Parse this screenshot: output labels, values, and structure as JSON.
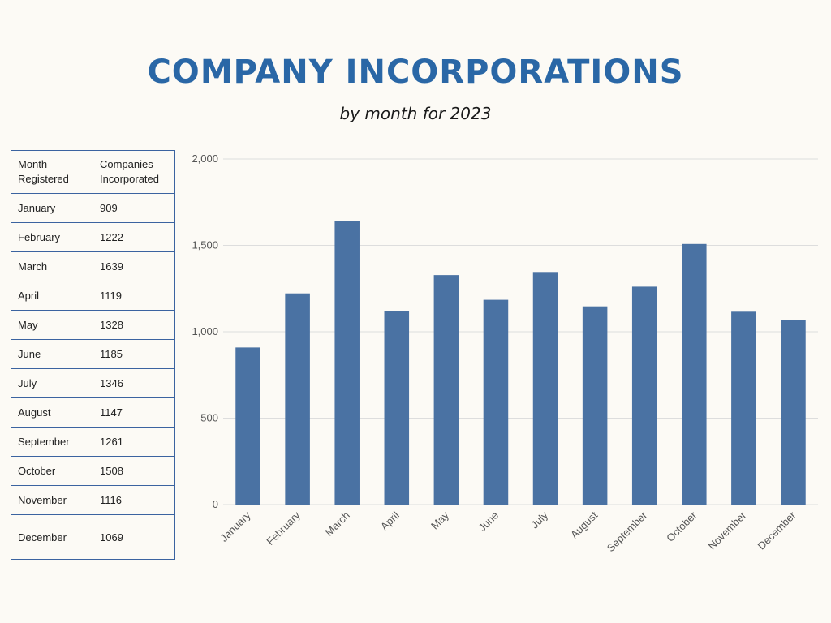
{
  "title": "COMPANY INCORPORATIONS",
  "subtitle": "by month for 2023",
  "table": {
    "headers": [
      "Month\nRegistered",
      "Companies\nIncorporated"
    ],
    "rows": [
      [
        "January",
        "909"
      ],
      [
        "February",
        "1222"
      ],
      [
        "March",
        "1639"
      ],
      [
        "April",
        "1119"
      ],
      [
        "May",
        "1328"
      ],
      [
        "June",
        "1185"
      ],
      [
        "July",
        "1346"
      ],
      [
        "August",
        "1147"
      ],
      [
        "September",
        "1261"
      ],
      [
        "October",
        "1508"
      ],
      [
        "November",
        "1116"
      ],
      [
        "December",
        "1069"
      ]
    ]
  },
  "colors": {
    "title": "#2a67a6",
    "bar": "#4a72a3",
    "table_border": "#3b63a0",
    "grid": "#dddddd",
    "background": "#fcfaf5"
  },
  "chart_data": {
    "type": "bar",
    "categories": [
      "January",
      "February",
      "March",
      "April",
      "May",
      "June",
      "July",
      "August",
      "September",
      "October",
      "November",
      "December"
    ],
    "values": [
      909,
      1222,
      1639,
      1119,
      1328,
      1185,
      1346,
      1147,
      1261,
      1508,
      1116,
      1069
    ],
    "ylim": [
      0,
      2000
    ],
    "yticks": [
      0,
      500,
      1000,
      1500,
      2000
    ],
    "ytick_labels": [
      "0",
      "500",
      "1,000",
      "1,500",
      "2,000"
    ],
    "grid": true,
    "xlabel": "",
    "ylabel": ""
  }
}
